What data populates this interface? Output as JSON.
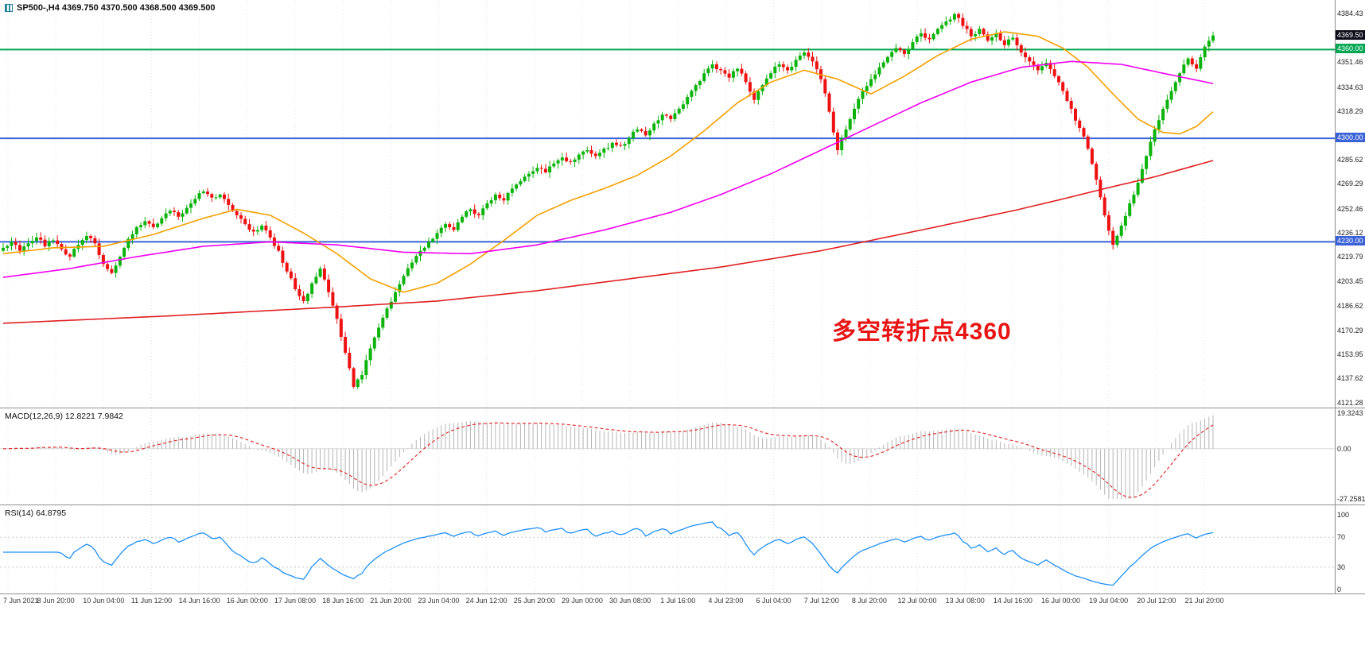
{
  "header": {
    "symbol_line": "SP500-,H4  4369.750 4370.500 4368.500 4369.500"
  },
  "annotation": {
    "text": "多空转折点4360",
    "color": "#e81414"
  },
  "indicators": {
    "macd": {
      "label": "MACD(12,26,9) 12.8221 7.9842",
      "axis": [
        {
          "text": "19.3243",
          "value": 19.3243
        },
        {
          "text": "0.00",
          "value": 0
        },
        {
          "text": "-27.2581",
          "value": -27.2581
        }
      ]
    },
    "rsi": {
      "label": "RSI(14) 64.8795",
      "axis": [
        {
          "text": "100",
          "value": 100
        },
        {
          "text": "70",
          "value": 70
        },
        {
          "text": "30",
          "value": 30
        },
        {
          "text": "0",
          "value": 0
        }
      ]
    }
  },
  "price_axis": {
    "labels": [
      "4384.43",
      "4351.46",
      "4334.63",
      "4318.29",
      "4285.62",
      "4269.29",
      "4252.46",
      "4236.12",
      "4219.79",
      "4203.45",
      "4186.62",
      "4170.29",
      "4153.95",
      "4137.62",
      "4121.28"
    ],
    "tags": [
      {
        "text": "4369.50",
        "price": 4369.5,
        "color": "#0d0d1a"
      },
      {
        "text": "4360.00",
        "price": 4360.0,
        "color": "#00a651"
      },
      {
        "text": "4300.00",
        "price": 4300.0,
        "color": "#3a62d8"
      },
      {
        "text": "4230.00",
        "price": 4230.0,
        "color": "#3a62d8"
      }
    ]
  },
  "time_axis": {
    "labels": [
      "7 Jun 2021",
      "8 Jun 20:00",
      "10 Jun 04:00",
      "11 Jun 12:00",
      "14 Jun 16:00",
      "16 Jun 00:00",
      "17 Jun 08:00",
      "18 Jun 16:00",
      "21 Jun 20:00",
      "23 Jun 04:00",
      "24 Jun 12:00",
      "25 Jun 20:00",
      "29 Jun 00:00",
      "30 Jun 08:00",
      "1 Jul 16:00",
      "4 Jul 23:00",
      "6 Jul 04:00",
      "7 Jul 12:00",
      "8 Jul 20:00",
      "12 Jul 00:00",
      "13 Jul 08:00",
      "14 Jul 16:00",
      "16 Jul 00:00",
      "19 Jul 04:00",
      "20 Jul 12:00",
      "21 Jul 20:00"
    ]
  },
  "chart_data": {
    "type": "candlestick",
    "symbol": "SP500-",
    "timeframe": "H4",
    "title": "SP500-,H4",
    "current_ohlc": {
      "open": 4369.75,
      "high": 4370.5,
      "low": 4368.5,
      "close": 4369.5
    },
    "price_range_visible": [
      4121.28,
      4384.43
    ],
    "price_scale": {
      "top": 4393.5,
      "bottom": 4118.0
    },
    "close_estimates": [
      4226,
      4230,
      4224,
      4229,
      4233,
      4227,
      4231,
      4225,
      4220,
      4228,
      4234,
      4229,
      4215,
      4209,
      4220,
      4232,
      4240,
      4244,
      4240,
      4246,
      4251,
      4247,
      4253,
      4259,
      4264,
      4260,
      4262,
      4255,
      4248,
      4242,
      4237,
      4241,
      4233,
      4224,
      4210,
      4198,
      4190,
      4202,
      4212,
      4196,
      4178,
      4155,
      4132,
      4140,
      4158,
      4172,
      4185,
      4196,
      4207,
      4216,
      4224,
      4230,
      4236,
      4242,
      4238,
      4247,
      4252,
      4248,
      4256,
      4262,
      4258,
      4266,
      4271,
      4276,
      4280,
      4277,
      4283,
      4287,
      4284,
      4289,
      4292,
      4288,
      4293,
      4297,
      4295,
      4300,
      4306,
      4302,
      4310,
      4316,
      4313,
      4320,
      4328,
      4336,
      4344,
      4350,
      4346,
      4341,
      4347,
      4338,
      4326,
      4336,
      4344,
      4350,
      4346,
      4353,
      4358,
      4352,
      4340,
      4318,
      4292,
      4306,
      4320,
      4332,
      4340,
      4348,
      4355,
      4361,
      4357,
      4365,
      4371,
      4367,
      4374,
      4379,
      4384,
      4376,
      4369,
      4374,
      4366,
      4371,
      4363,
      4368,
      4358,
      4352,
      4346,
      4351,
      4342,
      4332,
      4320,
      4307,
      4293,
      4272,
      4248,
      4228,
      4241,
      4256,
      4270,
      4288,
      4306,
      4320,
      4332,
      4344,
      4354,
      4347,
      4362,
      4369.5
    ],
    "hlines": [
      {
        "price": 4360.0,
        "color": "#00a651",
        "label": "4360.00"
      },
      {
        "price": 4300.0,
        "color": "#3a62d8",
        "label": "4300.00"
      },
      {
        "price": 4230.0,
        "color": "#3a62d8",
        "label": "4230.00"
      }
    ],
    "moving_averages": [
      {
        "name": "ma-fast-orange",
        "color": "#f5a000",
        "anchors": [
          [
            0,
            4222
          ],
          [
            6,
            4226
          ],
          [
            12,
            4227
          ],
          [
            18,
            4235
          ],
          [
            24,
            4246
          ],
          [
            28,
            4252
          ],
          [
            32,
            4248
          ],
          [
            36,
            4236
          ],
          [
            40,
            4222
          ],
          [
            44,
            4205
          ],
          [
            48,
            4196
          ],
          [
            52,
            4202
          ],
          [
            56,
            4215
          ],
          [
            60,
            4231
          ],
          [
            64,
            4248
          ],
          [
            68,
            4258
          ],
          [
            72,
            4266
          ],
          [
            76,
            4275
          ],
          [
            80,
            4288
          ],
          [
            84,
            4305
          ],
          [
            88,
            4324
          ],
          [
            92,
            4338
          ],
          [
            96,
            4346
          ],
          [
            100,
            4340
          ],
          [
            104,
            4330
          ],
          [
            108,
            4342
          ],
          [
            112,
            4356
          ],
          [
            116,
            4367
          ],
          [
            120,
            4372
          ],
          [
            124,
            4369
          ],
          [
            127,
            4361
          ],
          [
            130,
            4348
          ],
          [
            133,
            4330
          ],
          [
            136,
            4313
          ],
          [
            139,
            4304
          ],
          [
            141,
            4303
          ],
          [
            143,
            4308
          ],
          [
            145,
            4318
          ]
        ]
      },
      {
        "name": "ma-mid-magenta",
        "color": "#f000f0",
        "anchors": [
          [
            0,
            4206
          ],
          [
            8,
            4212
          ],
          [
            16,
            4220
          ],
          [
            24,
            4227
          ],
          [
            32,
            4230
          ],
          [
            40,
            4228
          ],
          [
            48,
            4223
          ],
          [
            56,
            4222
          ],
          [
            64,
            4228
          ],
          [
            72,
            4238
          ],
          [
            80,
            4250
          ],
          [
            86,
            4262
          ],
          [
            92,
            4276
          ],
          [
            98,
            4292
          ],
          [
            104,
            4308
          ],
          [
            110,
            4324
          ],
          [
            116,
            4338
          ],
          [
            122,
            4348
          ],
          [
            128,
            4352
          ],
          [
            134,
            4350
          ],
          [
            139,
            4344
          ],
          [
            145,
            4337
          ]
        ]
      },
      {
        "name": "ma-slow-red",
        "color": "#e02020",
        "anchors": [
          [
            0,
            4175
          ],
          [
            20,
            4180
          ],
          [
            40,
            4186
          ],
          [
            52,
            4190
          ],
          [
            64,
            4197
          ],
          [
            75,
            4205
          ],
          [
            86,
            4213
          ],
          [
            98,
            4224
          ],
          [
            110,
            4238
          ],
          [
            121,
            4251
          ],
          [
            127,
            4259
          ],
          [
            132,
            4266
          ],
          [
            138,
            4274
          ],
          [
            145,
            4285
          ]
        ]
      }
    ],
    "macd": {
      "fast": 12,
      "slow": 26,
      "signal": 9,
      "value": 12.8221,
      "signal_value": 7.9842,
      "axis_max": 19.3243,
      "axis_min": -27.2581
    },
    "rsi": {
      "period": 14,
      "value": 64.8795,
      "levels": [
        70,
        30
      ]
    },
    "colors": {
      "up": "#0cb30c",
      "down": "#ee1111",
      "macd_hist": "#b5b5b5",
      "macd_signal": "#e03030",
      "rsi_line": "#1e90ff",
      "grid": "#e3e3e3"
    }
  }
}
